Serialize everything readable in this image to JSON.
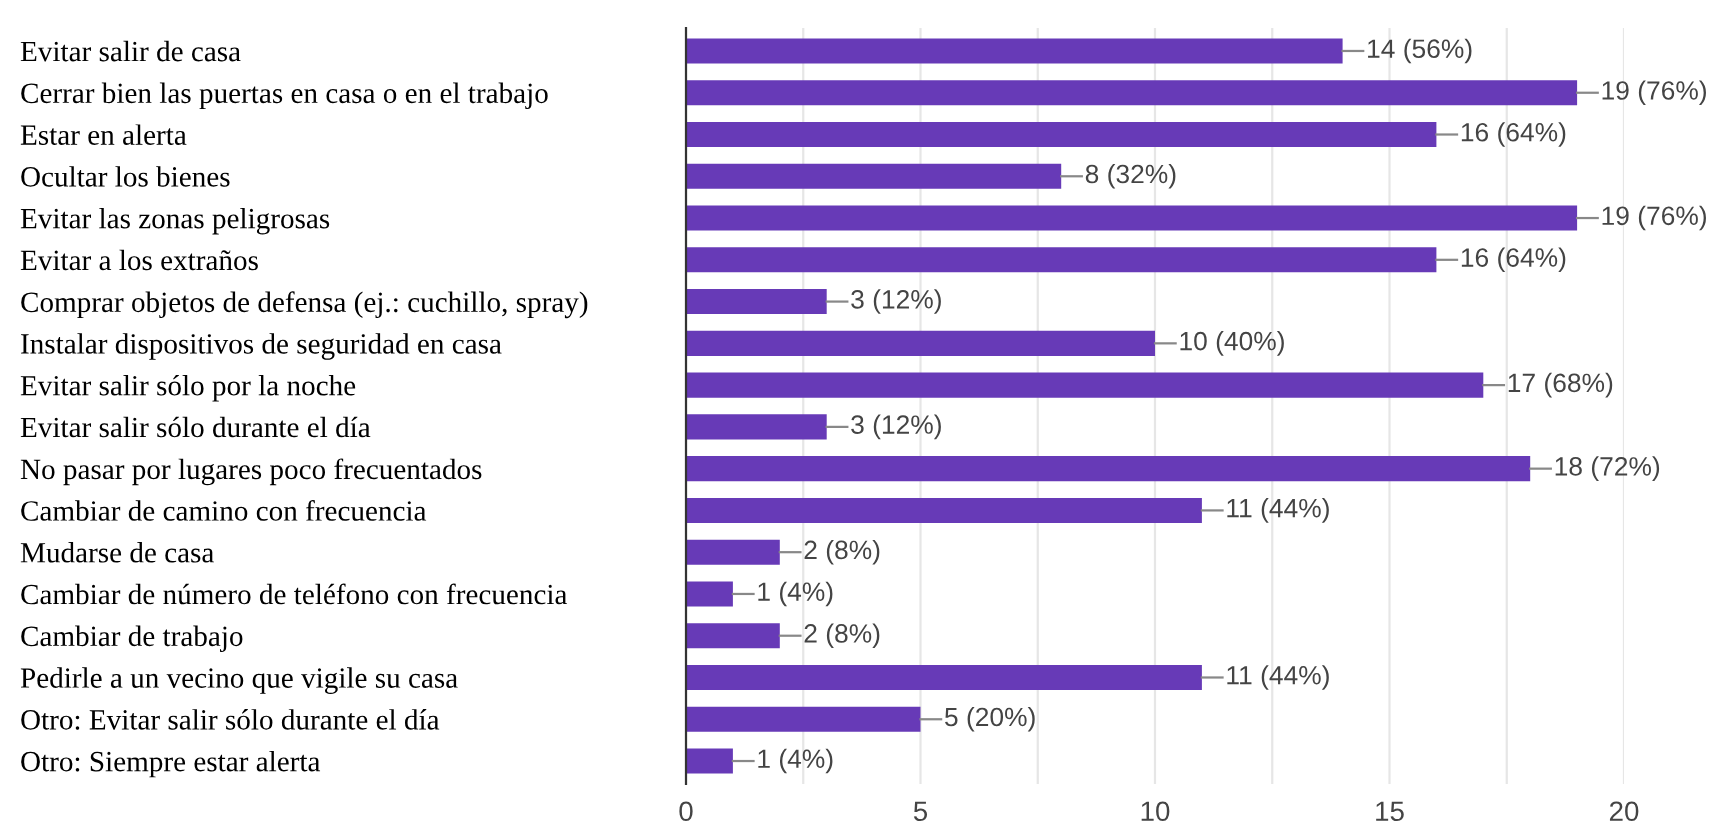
{
  "chart_data": {
    "type": "bar",
    "orientation": "horizontal",
    "categories": [
      "Evitar salir de casa",
      "Cerrar bien las puertas en casa o en el trabajo",
      "Estar en alerta",
      "Ocultar los bienes",
      "Evitar las zonas peligrosas",
      "Evitar a los extraños",
      "Comprar objetos de defensa (ej.: cuchillo, spray)",
      "Instalar dispositivos de seguridad en casa",
      "Evitar salir sólo por la noche",
      "Evitar salir sólo durante el día",
      "No pasar por lugares poco frecuentados",
      "Cambiar de camino con frecuencia",
      "Mudarse de casa",
      "Cambiar de número de teléfono con frecuencia",
      "Cambiar de trabajo",
      "Pedirle a un vecino que vigile su casa",
      "Otro: Evitar salir sólo durante el día",
      "Otro: Siempre estar alerta"
    ],
    "values": [
      14,
      19,
      16,
      8,
      19,
      16,
      3,
      10,
      17,
      3,
      18,
      11,
      2,
      1,
      2,
      11,
      5,
      1
    ],
    "value_labels": [
      "14 (56%)",
      "19 (76%)",
      "16 (64%)",
      "8 (32%)",
      "19 (76%)",
      "16 (64%)",
      "3 (12%)",
      "10 (40%)",
      "17 (68%)",
      "3 (12%)",
      "18 (72%)",
      "11 (44%)",
      "2 (8%)",
      "1 (4%)",
      "2 (8%)",
      "11 (44%)",
      "5 (20%)",
      "1 (4%)"
    ],
    "color": "#673ab7",
    "xlim": [
      0,
      20
    ],
    "xticks": [
      0,
      {
        "value": 2.5,
        "label": null
      },
      5,
      {
        "value": 7.5,
        "label": null
      },
      10,
      {
        "value": 12.5,
        "label": null
      },
      15,
      {
        "value": 17.5,
        "label": null
      },
      20
    ],
    "grid": "x",
    "legend": false
  }
}
